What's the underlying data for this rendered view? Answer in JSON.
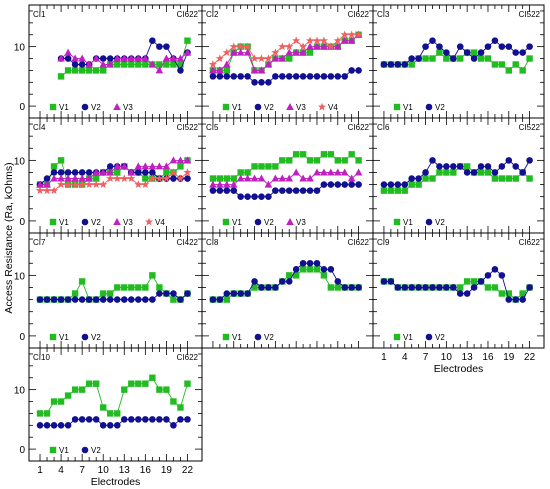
{
  "figure": {
    "ylabel": "Access Resistance (Ra, kOhms)",
    "xlabel": "Electrodes"
  },
  "colors": {
    "V1": "#22bb22",
    "V2": "#101090",
    "V3": "#c020c0",
    "V4": "#f06060",
    "axis": "#000000"
  },
  "chart_data": [
    {
      "type": "scatter",
      "panel_label": "CI1",
      "device": "CI622",
      "grid": false,
      "x": [
        1,
        2,
        3,
        4,
        5,
        6,
        7,
        8,
        9,
        10,
        11,
        12,
        13,
        14,
        15,
        16,
        17,
        18,
        19,
        20,
        21,
        22
      ],
      "xticks": [
        1,
        4,
        7,
        10,
        13,
        16,
        19,
        22
      ],
      "ylim": [
        -2,
        17
      ],
      "yticks": [
        0,
        10
      ],
      "legend": "bottom-left",
      "x_tick_labels_shown": false,
      "xlabel_shown": false,
      "series": [
        {
          "name": "V1",
          "marker": "square",
          "values": [
            null,
            null,
            null,
            5,
            6,
            6,
            6,
            6,
            6,
            6,
            7,
            7,
            7,
            7,
            7,
            7,
            7,
            7,
            7,
            7,
            7,
            11
          ]
        },
        {
          "name": "V2",
          "marker": "circle",
          "values": [
            null,
            null,
            null,
            8,
            8,
            7,
            7,
            7,
            8,
            8,
            8,
            8,
            8,
            8,
            8,
            8,
            11,
            10,
            10,
            8,
            6,
            9
          ]
        },
        {
          "name": "V3",
          "marker": "triangle",
          "values": [
            null,
            null,
            null,
            8,
            9,
            8,
            8,
            7,
            8,
            7,
            7,
            8,
            8,
            8,
            8,
            8,
            7,
            6,
            8,
            8,
            8,
            9
          ]
        }
      ]
    },
    {
      "type": "scatter",
      "panel_label": "CI2",
      "device": "CI622",
      "grid": false,
      "x": [
        1,
        2,
        3,
        4,
        5,
        6,
        7,
        8,
        9,
        10,
        11,
        12,
        13,
        14,
        15,
        16,
        17,
        18,
        19,
        20,
        21,
        22
      ],
      "xticks": [
        1,
        4,
        7,
        10,
        13,
        16,
        19,
        22
      ],
      "ylim": [
        -2,
        17
      ],
      "yticks": [
        0,
        10
      ],
      "legend": "bottom-left",
      "x_tick_labels_shown": false,
      "xlabel_shown": false,
      "series": [
        {
          "name": "V1",
          "marker": "square",
          "values": [
            6,
            6,
            6,
            9,
            10,
            10,
            6,
            6,
            7,
            8,
            8,
            8,
            9,
            9,
            9,
            10,
            10,
            10,
            10,
            11,
            11,
            12
          ]
        },
        {
          "name": "V2",
          "marker": "circle",
          "values": [
            5,
            5,
            5,
            5,
            5,
            5,
            4,
            4,
            4,
            5,
            5,
            5,
            5,
            5,
            5,
            5,
            5,
            5,
            5,
            5,
            6,
            6
          ]
        },
        {
          "name": "V3",
          "marker": "triangle",
          "values": [
            6,
            6,
            7,
            9,
            9,
            9,
            6,
            6,
            7,
            8,
            8,
            9,
            9,
            9,
            10,
            10,
            10,
            10,
            10,
            11,
            11,
            12
          ]
        },
        {
          "name": "V4",
          "marker": "star",
          "values": [
            7,
            8,
            9,
            10,
            10,
            10,
            8,
            8,
            8,
            9,
            10,
            10,
            11,
            10,
            11,
            11,
            11,
            10,
            11,
            12,
            12,
            12
          ]
        }
      ]
    },
    {
      "type": "scatter",
      "panel_label": "CI3",
      "device": "CI522",
      "grid": false,
      "x": [
        1,
        2,
        3,
        4,
        5,
        6,
        7,
        8,
        9,
        10,
        11,
        12,
        13,
        14,
        15,
        16,
        17,
        18,
        19,
        20,
        21,
        22
      ],
      "xticks": [
        1,
        4,
        7,
        10,
        13,
        16,
        19,
        22
      ],
      "ylim": [
        -2,
        17
      ],
      "yticks": [
        0,
        10
      ],
      "legend": "bottom-left",
      "x_tick_labels_shown": false,
      "xlabel_shown": false,
      "series": [
        {
          "name": "V1",
          "marker": "square",
          "values": [
            7,
            7,
            7,
            7,
            7,
            8,
            8,
            8,
            9,
            8,
            8,
            8,
            9,
            9,
            8,
            8,
            7,
            7,
            6,
            7,
            6,
            8
          ]
        },
        {
          "name": "V2",
          "marker": "circle",
          "values": [
            7,
            7,
            7,
            7,
            8,
            8,
            10,
            11,
            10,
            9,
            8,
            10,
            9,
            8,
            9,
            10,
            11,
            10,
            10,
            9,
            9,
            10
          ]
        }
      ]
    },
    {
      "type": "scatter",
      "panel_label": "CI4",
      "device": "CI522",
      "grid": false,
      "x": [
        1,
        2,
        3,
        4,
        5,
        6,
        7,
        8,
        9,
        10,
        11,
        12,
        13,
        14,
        15,
        16,
        17,
        18,
        19,
        20,
        21,
        22
      ],
      "xticks": [
        1,
        4,
        7,
        10,
        13,
        16,
        19,
        22
      ],
      "ylim": [
        -2,
        17
      ],
      "yticks": [
        0,
        10
      ],
      "legend": "bottom-left",
      "x_tick_labels_shown": false,
      "xlabel_shown": false,
      "series": [
        {
          "name": "V1",
          "marker": "square",
          "values": [
            6,
            6,
            9,
            10,
            6,
            6,
            6,
            7,
            7,
            8,
            8,
            8,
            9,
            8,
            8,
            7,
            7,
            7,
            8,
            8,
            9,
            10
          ]
        },
        {
          "name": "V2",
          "marker": "circle",
          "values": [
            6,
            7,
            8,
            8,
            8,
            8,
            8,
            8,
            8,
            8,
            9,
            9,
            9,
            8,
            8,
            8,
            8,
            7,
            7,
            7,
            7,
            7
          ]
        },
        {
          "name": "V3",
          "marker": "triangle",
          "values": [
            6,
            6,
            7,
            7,
            7,
            7,
            7,
            7,
            8,
            8,
            8,
            9,
            9,
            8,
            9,
            9,
            9,
            9,
            9,
            10,
            10,
            10
          ]
        },
        {
          "name": "V4",
          "marker": "star",
          "values": [
            5,
            5,
            5,
            6,
            6,
            6,
            6,
            6,
            6,
            6,
            7,
            7,
            7,
            7,
            6,
            6,
            7,
            7,
            7,
            8,
            7,
            8
          ]
        }
      ]
    },
    {
      "type": "scatter",
      "panel_label": "CI5",
      "device": "CI622",
      "grid": false,
      "x": [
        1,
        2,
        3,
        4,
        5,
        6,
        7,
        8,
        9,
        10,
        11,
        12,
        13,
        14,
        15,
        16,
        17,
        18,
        19,
        20,
        21,
        22
      ],
      "xticks": [
        1,
        4,
        7,
        10,
        13,
        16,
        19,
        22
      ],
      "ylim": [
        -2,
        17
      ],
      "yticks": [
        0,
        10
      ],
      "legend": "bottom-left",
      "x_tick_labels_shown": false,
      "xlabel_shown": false,
      "series": [
        {
          "name": "V1",
          "marker": "square",
          "values": [
            7,
            7,
            7,
            7,
            8,
            8,
            9,
            9,
            9,
            9,
            10,
            10,
            11,
            11,
            10,
            10,
            11,
            11,
            10,
            10,
            11,
            10
          ]
        },
        {
          "name": "V2",
          "marker": "circle",
          "values": [
            5,
            5,
            5,
            5,
            4,
            4,
            4,
            4,
            4,
            5,
            5,
            5,
            5,
            5,
            5,
            5,
            6,
            6,
            6,
            6,
            6,
            6
          ]
        },
        {
          "name": "V3",
          "marker": "triangle",
          "values": [
            6,
            6,
            6,
            6,
            7,
            7,
            7,
            7,
            6,
            7,
            7,
            7,
            8,
            7,
            7,
            8,
            8,
            8,
            8,
            8,
            7,
            8
          ]
        }
      ]
    },
    {
      "type": "scatter",
      "panel_label": "CI6",
      "device": "CI522",
      "grid": false,
      "x": [
        1,
        2,
        3,
        4,
        5,
        6,
        7,
        8,
        9,
        10,
        11,
        12,
        13,
        14,
        15,
        16,
        17,
        18,
        19,
        20,
        21,
        22
      ],
      "xticks": [
        1,
        4,
        7,
        10,
        13,
        16,
        19,
        22
      ],
      "ylim": [
        -2,
        17
      ],
      "yticks": [
        0,
        10
      ],
      "legend": "bottom-left",
      "x_tick_labels_shown": false,
      "xlabel_shown": false,
      "series": [
        {
          "name": "V1",
          "marker": "square",
          "values": [
            5,
            5,
            5,
            5,
            6,
            6,
            7,
            7,
            8,
            8,
            8,
            9,
            9,
            8,
            8,
            8,
            7,
            7,
            7,
            7,
            8,
            7
          ]
        },
        {
          "name": "V2",
          "marker": "circle",
          "values": [
            6,
            6,
            6,
            6,
            7,
            7,
            8,
            10,
            9,
            9,
            9,
            9,
            8,
            8,
            9,
            9,
            8,
            9,
            10,
            9,
            8,
            10
          ]
        }
      ]
    },
    {
      "type": "scatter",
      "panel_label": "CI7",
      "device": "CI422",
      "grid": false,
      "x": [
        1,
        2,
        3,
        4,
        5,
        6,
        7,
        8,
        9,
        10,
        11,
        12,
        13,
        14,
        15,
        16,
        17,
        18,
        19,
        20,
        21,
        22
      ],
      "xticks": [
        1,
        4,
        7,
        10,
        13,
        16,
        19,
        22
      ],
      "ylim": [
        -2,
        17
      ],
      "yticks": [
        0,
        10
      ],
      "legend": "bottom-left",
      "x_tick_labels_shown": false,
      "xlabel_shown": false,
      "series": [
        {
          "name": "V1",
          "marker": "square",
          "values": [
            6,
            6,
            6,
            6,
            6,
            7,
            9,
            6,
            6,
            7,
            7,
            8,
            8,
            8,
            8,
            8,
            10,
            8,
            7,
            6,
            6,
            7
          ]
        },
        {
          "name": "V2",
          "marker": "circle",
          "values": [
            6,
            6,
            6,
            6,
            6,
            6,
            6,
            6,
            6,
            6,
            6,
            6,
            6,
            6,
            6,
            6,
            6,
            7,
            7,
            7,
            6,
            7
          ]
        }
      ]
    },
    {
      "type": "scatter",
      "panel_label": "CI8",
      "device": "CI622",
      "grid": false,
      "x": [
        1,
        2,
        3,
        4,
        5,
        6,
        7,
        8,
        9,
        10,
        11,
        12,
        13,
        14,
        15,
        16,
        17,
        18,
        19,
        20,
        21,
        22
      ],
      "xticks": [
        1,
        4,
        7,
        10,
        13,
        16,
        19,
        22
      ],
      "ylim": [
        -2,
        17
      ],
      "yticks": [
        0,
        10
      ],
      "legend": "bottom-left",
      "x_tick_labels_shown": false,
      "xlabel_shown": false,
      "series": [
        {
          "name": "V1",
          "marker": "square",
          "values": [
            6,
            6,
            6,
            7,
            7,
            7,
            8,
            8,
            8,
            8,
            9,
            10,
            10,
            11,
            11,
            11,
            10,
            8,
            8,
            8,
            8,
            8
          ]
        },
        {
          "name": "V2",
          "marker": "circle",
          "values": [
            6,
            6,
            7,
            7,
            7,
            7,
            9,
            8,
            8,
            8,
            9,
            9,
            11,
            12,
            12,
            12,
            11,
            11,
            9,
            8,
            8,
            8
          ]
        }
      ]
    },
    {
      "type": "scatter",
      "panel_label": "CI9",
      "device": "CI622",
      "grid": false,
      "x": [
        1,
        2,
        3,
        4,
        5,
        6,
        7,
        8,
        9,
        10,
        11,
        12,
        13,
        14,
        15,
        16,
        17,
        18,
        19,
        20,
        21,
        22
      ],
      "xticks": [
        1,
        4,
        7,
        10,
        13,
        16,
        19,
        22
      ],
      "ylim": [
        -2,
        17
      ],
      "yticks": [
        0,
        10
      ],
      "legend": "bottom-left",
      "x_tick_labels_shown": true,
      "xlabel_shown": true,
      "series": [
        {
          "name": "V1",
          "marker": "square",
          "values": [
            9,
            9,
            8,
            8,
            8,
            8,
            8,
            8,
            8,
            8,
            8,
            8,
            9,
            9,
            9,
            8,
            8,
            7,
            7,
            6,
            7,
            8
          ]
        },
        {
          "name": "V2",
          "marker": "circle",
          "values": [
            9,
            9,
            8,
            8,
            8,
            8,
            8,
            8,
            8,
            8,
            8,
            7,
            7,
            8,
            9,
            10,
            11,
            10,
            6,
            6,
            6,
            8
          ]
        }
      ]
    },
    {
      "type": "scatter",
      "panel_label": "CI10",
      "device": "CI622",
      "grid": false,
      "x": [
        1,
        2,
        3,
        4,
        5,
        6,
        7,
        8,
        9,
        10,
        11,
        12,
        13,
        14,
        15,
        16,
        17,
        18,
        19,
        20,
        21,
        22
      ],
      "xticks": [
        1,
        4,
        7,
        10,
        13,
        16,
        19,
        22
      ],
      "ylim": [
        -2,
        17
      ],
      "yticks": [
        0,
        10
      ],
      "legend": "bottom-left",
      "x_tick_labels_shown": true,
      "xlabel_shown": true,
      "series": [
        {
          "name": "V1",
          "marker": "square",
          "values": [
            6,
            6,
            8,
            8,
            9,
            10,
            10,
            11,
            11,
            7,
            6,
            6,
            10,
            11,
            11,
            11,
            12,
            10,
            10,
            8,
            7,
            11
          ]
        },
        {
          "name": "V2",
          "marker": "circle",
          "values": [
            4,
            4,
            4,
            4,
            4,
            5,
            5,
            5,
            5,
            4,
            4,
            4,
            5,
            5,
            5,
            5,
            5,
            5,
            5,
            4,
            5,
            5
          ]
        }
      ]
    }
  ]
}
